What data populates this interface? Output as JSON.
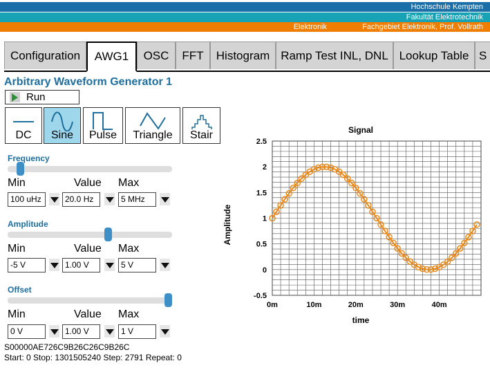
{
  "header": {
    "line1": "Hochschule Kempten",
    "line2": "Fakultät Elektrotechnik",
    "line3a": "Elektronik",
    "line3b": "Fachgebiet Elektronik, Prof. Vollrath",
    "colors": {
      "bar1": "#1a6fa8",
      "bar2": "#17a3b5",
      "bar3": "#ef7d00"
    }
  },
  "tabs": [
    {
      "label": "Configuration",
      "active": false
    },
    {
      "label": "AWG1",
      "active": true
    },
    {
      "label": "OSC",
      "active": false
    },
    {
      "label": "FFT",
      "active": false
    },
    {
      "label": "Histogram",
      "active": false
    },
    {
      "label": "Ramp Test INL, DNL",
      "active": false
    },
    {
      "label": "Lookup Table",
      "active": false
    },
    {
      "label": "S",
      "active": false
    }
  ],
  "page_title": "Arbitrary Waveform Generator 1",
  "run_label": "Run",
  "waveforms": [
    {
      "label": "DC",
      "icon": "dc-icon",
      "active": false
    },
    {
      "label": "Sine",
      "icon": "sine-icon",
      "active": true
    },
    {
      "label": "Pulse",
      "icon": "pulse-icon",
      "active": false
    },
    {
      "label": "Triangle",
      "icon": "triangle-icon",
      "active": false
    },
    {
      "label": "Stair",
      "icon": "stair-icon",
      "active": false
    }
  ],
  "col_headers": {
    "min": "Min",
    "value": "Value",
    "max": "Max"
  },
  "frequency": {
    "label": "Frequency",
    "slider_fraction": 0.05,
    "min": "100 uHz",
    "value": "20.0 Hz",
    "max": "5 MHz"
  },
  "amplitude": {
    "label": "Amplitude",
    "slider_fraction": 0.6,
    "min": "-5 V",
    "value": "1.00 V",
    "max": "5 V"
  },
  "offset": {
    "label": "Offset",
    "slider_fraction": 1.0,
    "min": "0 V",
    "value": "1.00 V",
    "max": "1 V"
  },
  "status": {
    "code": "S00000AE726C9B26C26C9B26C",
    "line": "Start: 0 Stop: 1301505240 Step: 2791 Repeat: 0"
  },
  "chart_data": {
    "type": "line",
    "title": "Signal",
    "xlabel": "time",
    "ylabel": "Amplitude",
    "xlim": [
      0,
      0.05
    ],
    "ylim": [
      -0.5,
      2.5
    ],
    "xticks": [
      "0m",
      "10m",
      "20m",
      "30m",
      "40m"
    ],
    "yticks": [
      "2.5",
      "2",
      "1.5",
      "1",
      "0.5",
      "0",
      "-0.5"
    ],
    "grid": true,
    "series": [
      {
        "color": "#e8891b",
        "marker": "circle",
        "x": [
          0,
          0.001,
          0.002,
          0.003,
          0.004,
          0.005,
          0.006,
          0.007,
          0.008,
          0.009,
          0.01,
          0.011,
          0.012,
          0.013,
          0.014,
          0.015,
          0.016,
          0.017,
          0.018,
          0.019,
          0.02,
          0.021,
          0.022,
          0.023,
          0.024,
          0.025,
          0.026,
          0.027,
          0.028,
          0.029,
          0.03,
          0.031,
          0.032,
          0.033,
          0.034,
          0.035,
          0.036,
          0.037,
          0.038,
          0.039,
          0.04,
          0.041,
          0.042,
          0.043,
          0.044,
          0.045,
          0.046,
          0.047,
          0.048,
          0.049
        ],
        "y": [
          1.0,
          1.125,
          1.249,
          1.368,
          1.482,
          1.588,
          1.685,
          1.771,
          1.844,
          1.905,
          1.951,
          1.982,
          1.998,
          1.998,
          1.982,
          1.951,
          1.905,
          1.844,
          1.771,
          1.685,
          1.588,
          1.482,
          1.368,
          1.249,
          1.125,
          1.0,
          0.875,
          0.751,
          0.632,
          0.518,
          0.412,
          0.315,
          0.229,
          0.156,
          0.095,
          0.049,
          0.018,
          0.002,
          0.002,
          0.018,
          0.049,
          0.095,
          0.156,
          0.229,
          0.315,
          0.412,
          0.518,
          0.632,
          0.751,
          0.875
        ]
      }
    ]
  }
}
